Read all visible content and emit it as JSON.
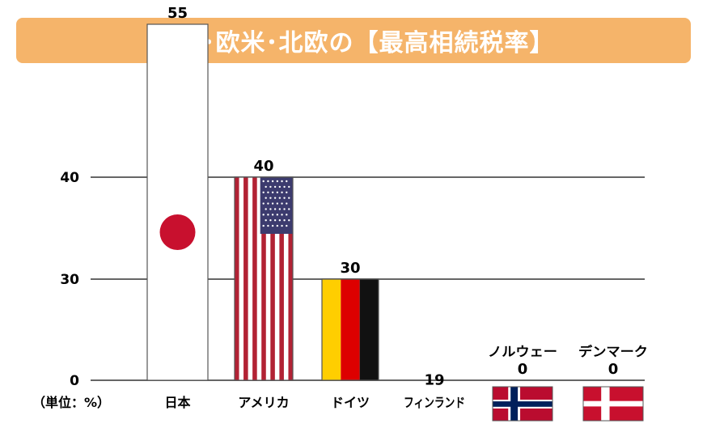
{
  "title": "日本･欧米･北欧の【最高相続税率】",
  "unit_label": "（単位：%）",
  "colors": {
    "title_bg": "#f5b46a",
    "grid": "#666666",
    "japan_red": "#c8102e",
    "usa_red": "#b22234",
    "usa_blue": "#3c3b6e",
    "germany_black": "#111111",
    "germany_red": "#dd0000",
    "germany_gold": "#ffce00",
    "finland_blue": "#003580",
    "norway_red": "#ba0c2f",
    "norway_blue": "#00205b",
    "denmark_red": "#c8102e"
  },
  "chart_data": {
    "type": "bar",
    "title": "日本･欧米･北欧の【最高相続税率】",
    "categories": [
      "日本",
      "アメリカ",
      "ドイツ",
      "フィンランド",
      "ノルウェー",
      "デンマーク"
    ],
    "values": [
      55,
      40,
      30,
      19,
      0,
      0
    ],
    "bar_fills": [
      "japan-flag",
      "usa-flag",
      "germany-flag",
      "finland-flag",
      "norway-flag",
      "denmark-flag"
    ],
    "yticks": [
      0,
      30,
      40
    ],
    "ylim": [
      0,
      55
    ],
    "grid": true,
    "axis_break": true,
    "unit": "（単位：%）"
  }
}
